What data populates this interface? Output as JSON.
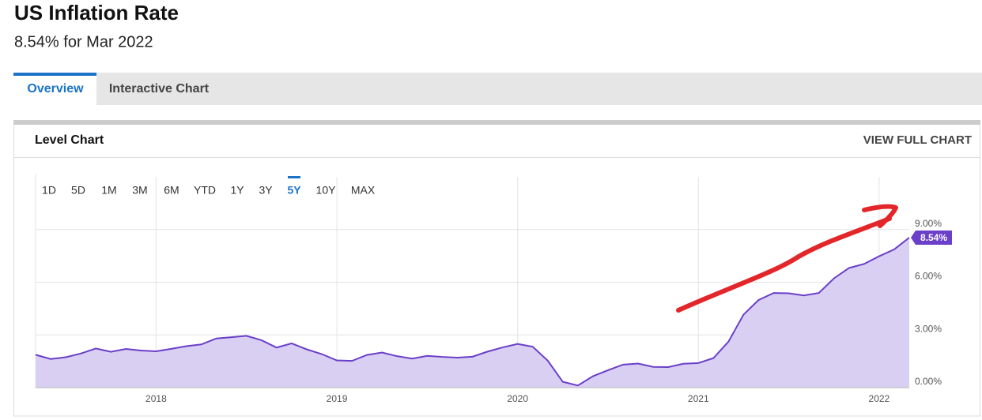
{
  "header": {
    "title": "US Inflation Rate",
    "subtitle": "8.54% for Mar 2022"
  },
  "tabs": [
    "Overview",
    "Interactive Chart"
  ],
  "card": {
    "title": "Level Chart",
    "link": "VIEW FULL CHART"
  },
  "ranges": [
    "1D",
    "5D",
    "1M",
    "3M",
    "6M",
    "YTD",
    "1Y",
    "3Y",
    "5Y",
    "10Y",
    "MAX"
  ],
  "chart_data": {
    "type": "area",
    "categories": [
      null,
      null,
      null,
      null,
      null,
      null,
      null,
      null,
      "2018",
      null,
      null,
      null,
      null,
      null,
      null,
      null,
      null,
      null,
      null,
      null,
      "2019",
      null,
      null,
      null,
      null,
      null,
      null,
      null,
      null,
      null,
      null,
      null,
      "2020",
      null,
      null,
      null,
      null,
      null,
      null,
      null,
      null,
      null,
      null,
      null,
      "2021",
      null,
      null,
      null,
      null,
      null,
      null,
      null,
      null,
      null,
      null,
      null,
      "2022",
      null,
      null
    ],
    "values": [
      1.87,
      1.63,
      1.73,
      1.94,
      2.23,
      2.04,
      2.2,
      2.11,
      2.07,
      2.21,
      2.36,
      2.46,
      2.8,
      2.87,
      2.95,
      2.7,
      2.28,
      2.52,
      2.18,
      1.91,
      1.55,
      1.52,
      1.86,
      2.0,
      1.79,
      1.65,
      1.81,
      1.75,
      1.71,
      1.76,
      2.05,
      2.29,
      2.49,
      2.33,
      1.54,
      0.33,
      0.12,
      0.65,
      0.99,
      1.31,
      1.37,
      1.18,
      1.17,
      1.36,
      1.4,
      1.68,
      2.62,
      4.16,
      4.99,
      5.39,
      5.37,
      5.25,
      5.39,
      6.22,
      6.81,
      7.04,
      7.48,
      7.87,
      8.54
    ],
    "value_labels": [
      null,
      null,
      null,
      null,
      null,
      null,
      null,
      null,
      null,
      null,
      null,
      null,
      null,
      null,
      null,
      null,
      null,
      null,
      null,
      null,
      null,
      null,
      null,
      null,
      null,
      null,
      null,
      null,
      null,
      null,
      null,
      null,
      null,
      null,
      null,
      null,
      null,
      null,
      null,
      null,
      null,
      null,
      null,
      null,
      null,
      null,
      null,
      null,
      null,
      null,
      null,
      null,
      null,
      null,
      null,
      null,
      null,
      null,
      "8.54%"
    ],
    "color": "#6a3fc9",
    "fill": "#d9cff2",
    "ylim": [
      0,
      12
    ],
    "yticks": [
      {
        "value": 0,
        "label": "0.00%"
      },
      {
        "value": 3,
        "label": "3.00%"
      },
      {
        "value": 6,
        "label": "6.00%"
      },
      {
        "value": 9,
        "label": "9.00%"
      }
    ],
    "grid": true,
    "selected_range": 8
  }
}
